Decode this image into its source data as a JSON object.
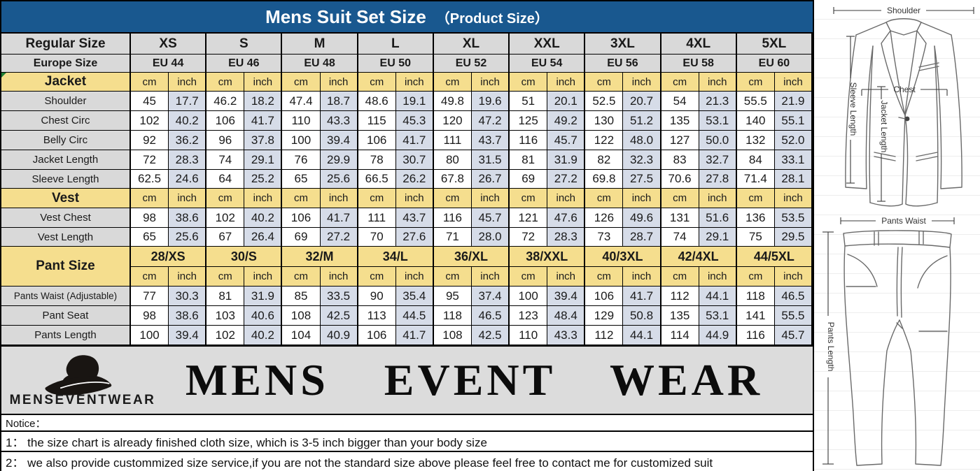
{
  "title": {
    "main": "Mens Suit Set Size",
    "sub": "（Product Size）"
  },
  "units": {
    "cm": "cm",
    "inch": "inch"
  },
  "size_header": {
    "regular_label": "Regular Size",
    "europe_label": "Europe Size",
    "regular_sizes": [
      "XS",
      "S",
      "M",
      "L",
      "XL",
      "XXL",
      "3XL",
      "4XL",
      "5XL"
    ],
    "europe_sizes": [
      "EU 44",
      "EU 46",
      "EU 48",
      "EU 50",
      "EU 52",
      "EU 54",
      "EU 56",
      "EU 58",
      "EU 60"
    ]
  },
  "sections": [
    {
      "id": "jacket",
      "label": "Jacket",
      "rows": [
        {
          "label": "Shoulder",
          "cm": [
            "45",
            "46.2",
            "47.4",
            "48.6",
            "49.8",
            "51",
            "52.5",
            "54",
            "55.5"
          ],
          "inch": [
            "17.7",
            "18.2",
            "18.7",
            "19.1",
            "19.6",
            "20.1",
            "20.7",
            "21.3",
            "21.9"
          ]
        },
        {
          "label": "Chest Circ",
          "cm": [
            "102",
            "106",
            "110",
            "115",
            "120",
            "125",
            "130",
            "135",
            "140"
          ],
          "inch": [
            "40.2",
            "41.7",
            "43.3",
            "45.3",
            "47.2",
            "49.2",
            "51.2",
            "53.1",
            "55.1"
          ]
        },
        {
          "label": "Belly Circ",
          "cm": [
            "92",
            "96",
            "100",
            "106",
            "111",
            "116",
            "122",
            "127",
            "132"
          ],
          "inch": [
            "36.2",
            "37.8",
            "39.4",
            "41.7",
            "43.7",
            "45.7",
            "48.0",
            "50.0",
            "52.0"
          ]
        },
        {
          "label": "Jacket Length",
          "cm": [
            "72",
            "74",
            "76",
            "78",
            "80",
            "81",
            "82",
            "83",
            "84"
          ],
          "inch": [
            "28.3",
            "29.1",
            "29.9",
            "30.7",
            "31.5",
            "31.9",
            "32.3",
            "32.7",
            "33.1"
          ]
        },
        {
          "label": "Sleeve Length",
          "cm": [
            "62.5",
            "64",
            "65",
            "66.5",
            "67.8",
            "69",
            "69.8",
            "70.6",
            "71.4"
          ],
          "inch": [
            "24.6",
            "25.2",
            "25.6",
            "26.2",
            "26.7",
            "27.2",
            "27.5",
            "27.8",
            "28.1"
          ]
        }
      ]
    },
    {
      "id": "vest",
      "label": "Vest",
      "rows": [
        {
          "label": "Vest Chest",
          "cm": [
            "98",
            "102",
            "106",
            "111",
            "116",
            "121",
            "126",
            "131",
            "136"
          ],
          "inch": [
            "38.6",
            "40.2",
            "41.7",
            "43.7",
            "45.7",
            "47.6",
            "49.6",
            "51.6",
            "53.5"
          ]
        },
        {
          "label": "Vest Length",
          "cm": [
            "65",
            "67",
            "69",
            "70",
            "71",
            "72",
            "73",
            "74",
            "75"
          ],
          "inch": [
            "25.6",
            "26.4",
            "27.2",
            "27.6",
            "28.0",
            "28.3",
            "28.7",
            "29.1",
            "29.5"
          ]
        }
      ]
    },
    {
      "id": "pants",
      "label": "Pant Size",
      "sizes": [
        "28/XS",
        "30/S",
        "32/M",
        "34/L",
        "36/XL",
        "38/XXL",
        "40/3XL",
        "42/4XL",
        "44/5XL"
      ],
      "rows": [
        {
          "label": "Pants Waist (Adjustable)",
          "cm": [
            "77",
            "81",
            "85",
            "90",
            "95",
            "100",
            "106",
            "112",
            "118"
          ],
          "inch": [
            "30.3",
            "31.9",
            "33.5",
            "35.4",
            "37.4",
            "39.4",
            "41.7",
            "44.1",
            "46.5"
          ]
        },
        {
          "label": "Pant Seat",
          "cm": [
            "98",
            "103",
            "108",
            "113",
            "118",
            "123",
            "129",
            "135",
            "141"
          ],
          "inch": [
            "38.6",
            "40.6",
            "42.5",
            "44.5",
            "46.5",
            "48.4",
            "50.8",
            "53.1",
            "55.5"
          ]
        },
        {
          "label": "Pants Length",
          "cm": [
            "100",
            "102",
            "104",
            "106",
            "108",
            "110",
            "112",
            "114",
            "116"
          ],
          "inch": [
            "39.4",
            "40.2",
            "40.9",
            "41.7",
            "42.5",
            "43.3",
            "44.1",
            "44.9",
            "45.7"
          ]
        }
      ]
    }
  ],
  "logo": {
    "brand_small": "MENSEVENTWEAR",
    "brand_large": "MENS EVENT WEAR"
  },
  "notice": {
    "heading": "Notice：",
    "line1": "1：  the size chart is already finished cloth size, which is 3-5 inch bigger than your body size",
    "line2": "2：  we also provide custommized size service,if you are not the standard size above please feel free to contact me for customized suit"
  },
  "diagrams": {
    "jacket": {
      "shoulder": "Shoulder",
      "sleeve_length": "Sleeve Length",
      "jacket_length": "Jacket Length",
      "chest": "Chest"
    },
    "pants": {
      "waist": "Pants Waist",
      "length": "Pants Length"
    }
  },
  "colors": {
    "header_blue": "#19588F",
    "section_yellow": "#F5DE8E",
    "header_gray": "#D9D9D9",
    "inch_blue": "#D6DCE8",
    "logo_gray": "#DCDCDC"
  }
}
